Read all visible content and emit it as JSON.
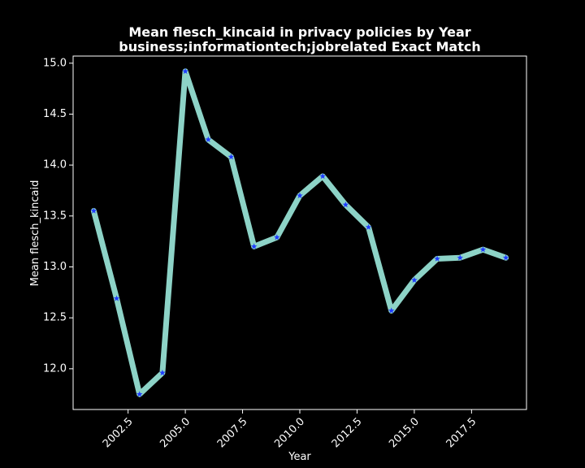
{
  "chart_data": {
    "type": "line",
    "title_line1": "Mean flesch_kincaid in privacy policies by Year",
    "title_line2": "business;informationtech;jobrelated Exact Match",
    "xlabel": "Year",
    "ylabel": "Mean flesch_kincaid",
    "xlim": [
      2000.1,
      2019.9
    ],
    "ylim": [
      11.6,
      15.07
    ],
    "x_ticks": [
      2002.5,
      2005.0,
      2007.5,
      2010.0,
      2012.5,
      2015.0,
      2017.5
    ],
    "x_tick_labels": [
      "2002.5",
      "2005.0",
      "2007.5",
      "2010.0",
      "2012.5",
      "2015.0",
      "2017.5"
    ],
    "y_ticks": [
      12.0,
      12.5,
      13.0,
      13.5,
      14.0,
      14.5,
      15.0
    ],
    "y_tick_labels": [
      "12.0",
      "12.5",
      "13.0",
      "13.5",
      "14.0",
      "14.5",
      "15.0"
    ],
    "grid": false,
    "series": [
      {
        "x": [
          2001,
          2002,
          2003,
          2004,
          2005,
          2006,
          2007,
          2008,
          2009,
          2010,
          2011,
          2012,
          2013,
          2014,
          2015,
          2016,
          2017,
          2018,
          2019
        ],
        "y": [
          13.55,
          12.69,
          11.75,
          11.96,
          14.92,
          14.25,
          14.08,
          13.2,
          13.29,
          13.7,
          13.89,
          13.61,
          13.39,
          12.57,
          12.87,
          13.08,
          13.09,
          13.17,
          13.09
        ],
        "line_color": "#8dd3c7",
        "marker_color": "#1f3cff",
        "marker": "star"
      }
    ],
    "colors": {
      "background": "#000000",
      "axes": "#ffffff",
      "text": "#ffffff"
    }
  }
}
